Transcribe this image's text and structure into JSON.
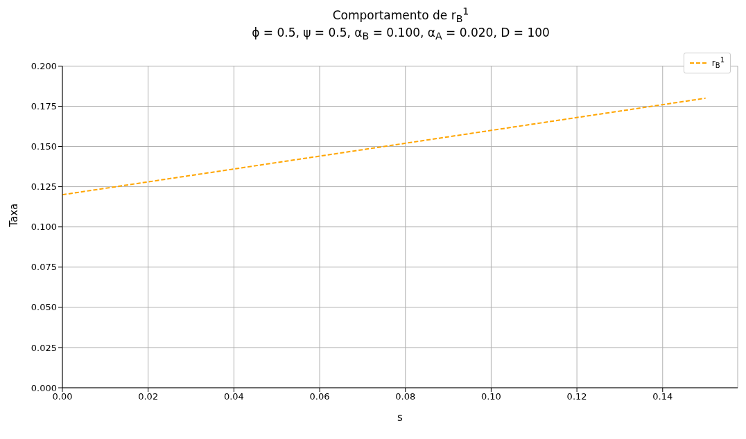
{
  "chart_data": {
    "type": "line",
    "title": "Comportamento de r$_{B}$$^{1}$",
    "subtitle": "ϕ = 0.5, ψ = 0.5, α$_{B}$ = 0.100, α$_{A}$ = 0.020, D = 100",
    "xlabel": "s",
    "ylabel": "Taxa",
    "x": [
      0,
      0.05,
      0.1,
      0.15
    ],
    "series": [
      {
        "name": "r$_{B}$$^{1}$",
        "color": "#ffa500",
        "values": [
          0.12,
          0.14,
          0.16,
          0.18
        ],
        "line_style": "dashed"
      }
    ],
    "xlim": [
      0,
      0.1575
    ],
    "xticks": [
      {
        "value": 0,
        "label": "0.00"
      },
      0.02,
      0.04,
      0.06,
      0.08,
      {
        "value": 0.1,
        "label": "0.10"
      },
      0.12,
      0.14
    ],
    "ylim": [
      0,
      0.2
    ],
    "yticks": [
      {
        "value": 0,
        "label": "0.000"
      },
      0.025,
      {
        "value": 0.05,
        "label": "0.050"
      },
      0.075,
      {
        "value": 0.1,
        "label": "0.100"
      },
      0.125,
      {
        "value": 0.15,
        "label": "0.150"
      },
      0.175,
      {
        "value": 0.2,
        "label": "0.200"
      }
    ],
    "grid": true,
    "legend": "top right",
    "marker": "none"
  }
}
